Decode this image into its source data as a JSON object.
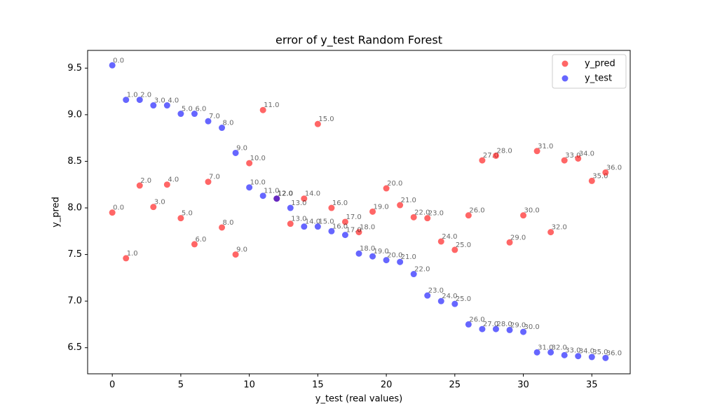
{
  "chart_data": {
    "type": "scatter",
    "title": "error of y_test Random Forest",
    "x_label": "y_test (real values)",
    "y_label": "y_pred",
    "xlim": [
      -1.8,
      37.8
    ],
    "ylim": [
      6.22,
      9.69
    ],
    "xticks": [
      0,
      5,
      10,
      15,
      20,
      25,
      30,
      35
    ],
    "yticks": [
      6.5,
      {
        "value": 7,
        "label": "7.0"
      },
      7.5,
      {
        "value": 8,
        "label": "8.0"
      },
      8.5,
      {
        "value": 9,
        "label": "9.0"
      },
      9.5
    ],
    "legend": "upper right",
    "grid": false,
    "x": [
      0,
      1,
      2,
      3,
      4,
      5,
      6,
      7,
      8,
      9,
      10,
      11,
      12,
      13,
      14,
      15,
      16,
      17,
      18,
      19,
      20,
      21,
      22,
      23,
      24,
      25,
      26,
      27,
      28,
      29,
      30,
      31,
      32,
      33,
      34,
      35,
      36
    ],
    "series": [
      {
        "name": "y_pred",
        "color": "#ff0000",
        "values": [
          7.95,
          7.46,
          8.24,
          8.01,
          8.25,
          7.89,
          7.61,
          8.28,
          7.79,
          7.5,
          8.48,
          9.05,
          8.1,
          7.83,
          8.1,
          8.9,
          8.0,
          7.85,
          7.74,
          7.96,
          8.21,
          8.03,
          7.9,
          7.89,
          7.64,
          7.55,
          7.92,
          8.51,
          8.56,
          7.63,
          7.92,
          8.61,
          7.74,
          8.51,
          8.53,
          8.29,
          8.38
        ],
        "annotations": [
          "0.0",
          "1.0",
          "2.0",
          "3.0",
          "4.0",
          "5.0",
          "6.0",
          "7.0",
          "8.0",
          "9.0",
          "10.0",
          "11.0",
          "12.0",
          "13.0",
          "14.0",
          "15.0",
          "16.0",
          "17.0",
          "18.0",
          "19.0",
          "20.0",
          "21.0",
          "22.0",
          "23.0",
          "24.0",
          "25.0",
          "26.0",
          "27.0",
          "28.0",
          "29.0",
          "30.0",
          "31.0",
          "32.0",
          "33.0",
          "34.0",
          "35.0",
          "36.0"
        ]
      },
      {
        "name": "y_test",
        "color": "#0000ff",
        "values": [
          9.53,
          9.16,
          9.16,
          9.1,
          9.1,
          9.01,
          9.01,
          8.93,
          8.86,
          8.59,
          8.22,
          8.13,
          8.1,
          8.0,
          7.8,
          7.8,
          7.75,
          7.71,
          7.51,
          7.48,
          7.44,
          7.42,
          7.29,
          7.06,
          7.0,
          6.97,
          6.75,
          6.7,
          6.7,
          6.69,
          6.67,
          6.45,
          6.45,
          6.42,
          6.41,
          6.4,
          6.39
        ],
        "annotations": [
          "0.0",
          "1.0",
          "2.0",
          "3.0",
          "4.0",
          "5.0",
          "6.0",
          "7.0",
          "8.0",
          "9.0",
          "10.0",
          "11.0",
          "12.0",
          "13.0",
          "14.0",
          "15.0",
          "16.0",
          "17.0",
          "18.0",
          "19.0",
          "20.0",
          "21.0",
          "22.0",
          "23.0",
          "24.0",
          "25.0",
          "26.0",
          "27.0",
          "28.0",
          "29.0",
          "30.0",
          "31.0",
          "32.0",
          "33.0",
          "34.0",
          "35.0",
          "36.0"
        ]
      }
    ]
  }
}
